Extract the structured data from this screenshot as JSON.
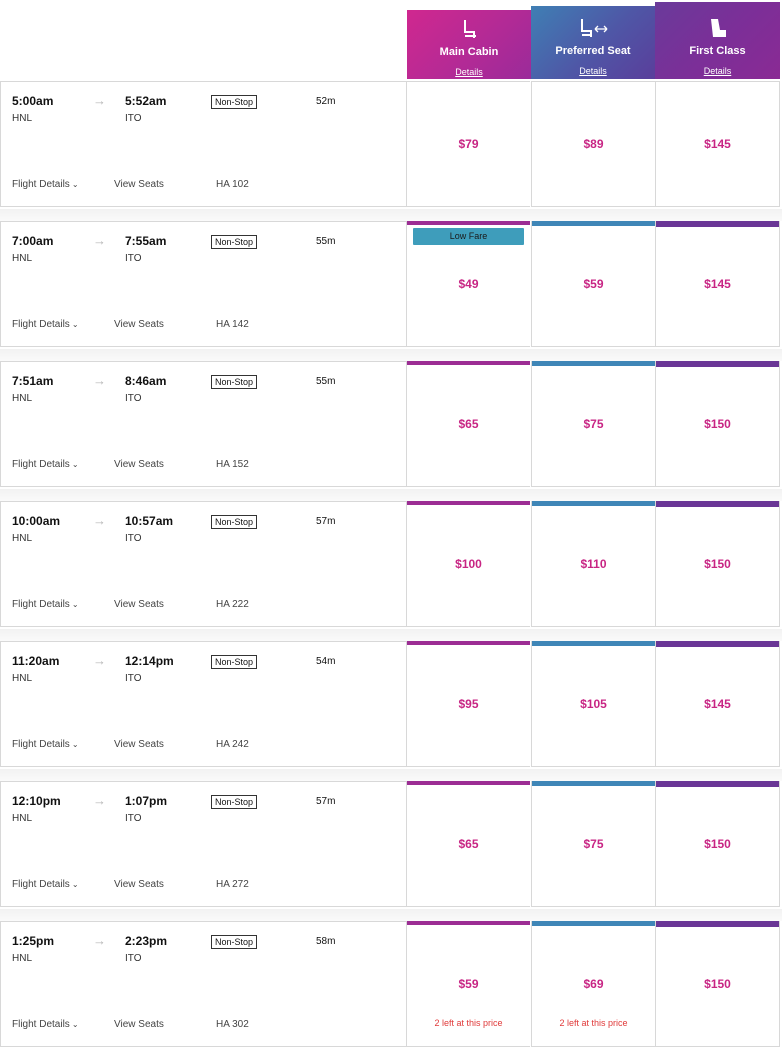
{
  "fare_classes": [
    {
      "key": "main",
      "title": "Main Cabin",
      "details": "Details",
      "icon": "seat-icon"
    },
    {
      "key": "pref",
      "title": "Preferred Seat",
      "details": "Details",
      "icon": "seat-extra-legroom-icon"
    },
    {
      "key": "first",
      "title": "First Class",
      "details": "Details",
      "icon": "first-class-seat-icon"
    }
  ],
  "labels": {
    "arrow": "→",
    "flight_details": "Flight Details",
    "chevron": "⌄",
    "view_seats": "View Seats"
  },
  "colors": {
    "price": "#c82584",
    "main_cabin": "#9c2d94",
    "preferred_seat": "#3f86b7",
    "first_class": "#6a3696",
    "low_fare_badge": "#3e9dbb"
  },
  "flights": [
    {
      "dep_time": "5:00am",
      "arr_time": "5:52am",
      "dep": "HNL",
      "arr": "ITO",
      "stops": "Non-Stop",
      "duration": "52m",
      "flight": "HA 102",
      "prices": {
        "main": "$79",
        "pref": "$89",
        "first": "$145"
      }
    },
    {
      "dep_time": "7:00am",
      "arr_time": "7:55am",
      "dep": "HNL",
      "arr": "ITO",
      "stops": "Non-Stop",
      "duration": "55m",
      "flight": "HA 142",
      "badge": "Low Fare",
      "prices": {
        "main": "$49",
        "pref": "$59",
        "first": "$145"
      }
    },
    {
      "dep_time": "7:51am",
      "arr_time": "8:46am",
      "dep": "HNL",
      "arr": "ITO",
      "stops": "Non-Stop",
      "duration": "55m",
      "flight": "HA 152",
      "prices": {
        "main": "$65",
        "pref": "$75",
        "first": "$150"
      }
    },
    {
      "dep_time": "10:00am",
      "arr_time": "10:57am",
      "dep": "HNL",
      "arr": "ITO",
      "stops": "Non-Stop",
      "duration": "57m",
      "flight": "HA 222",
      "prices": {
        "main": "$100",
        "pref": "$110",
        "first": "$150"
      }
    },
    {
      "dep_time": "11:20am",
      "arr_time": "12:14pm",
      "dep": "HNL",
      "arr": "ITO",
      "stops": "Non-Stop",
      "duration": "54m",
      "flight": "HA 242",
      "prices": {
        "main": "$95",
        "pref": "$105",
        "first": "$145"
      }
    },
    {
      "dep_time": "12:10pm",
      "arr_time": "1:07pm",
      "dep": "HNL",
      "arr": "ITO",
      "stops": "Non-Stop",
      "duration": "57m",
      "flight": "HA 272",
      "prices": {
        "main": "$65",
        "pref": "$75",
        "first": "$150"
      }
    },
    {
      "dep_time": "1:25pm",
      "arr_time": "2:23pm",
      "dep": "HNL",
      "arr": "ITO",
      "stops": "Non-Stop",
      "duration": "58m",
      "flight": "HA 302",
      "prices": {
        "main": "$59",
        "pref": "$69",
        "first": "$150"
      },
      "notes": {
        "main": "2 left at this price",
        "pref": "2 left at this price"
      }
    }
  ]
}
